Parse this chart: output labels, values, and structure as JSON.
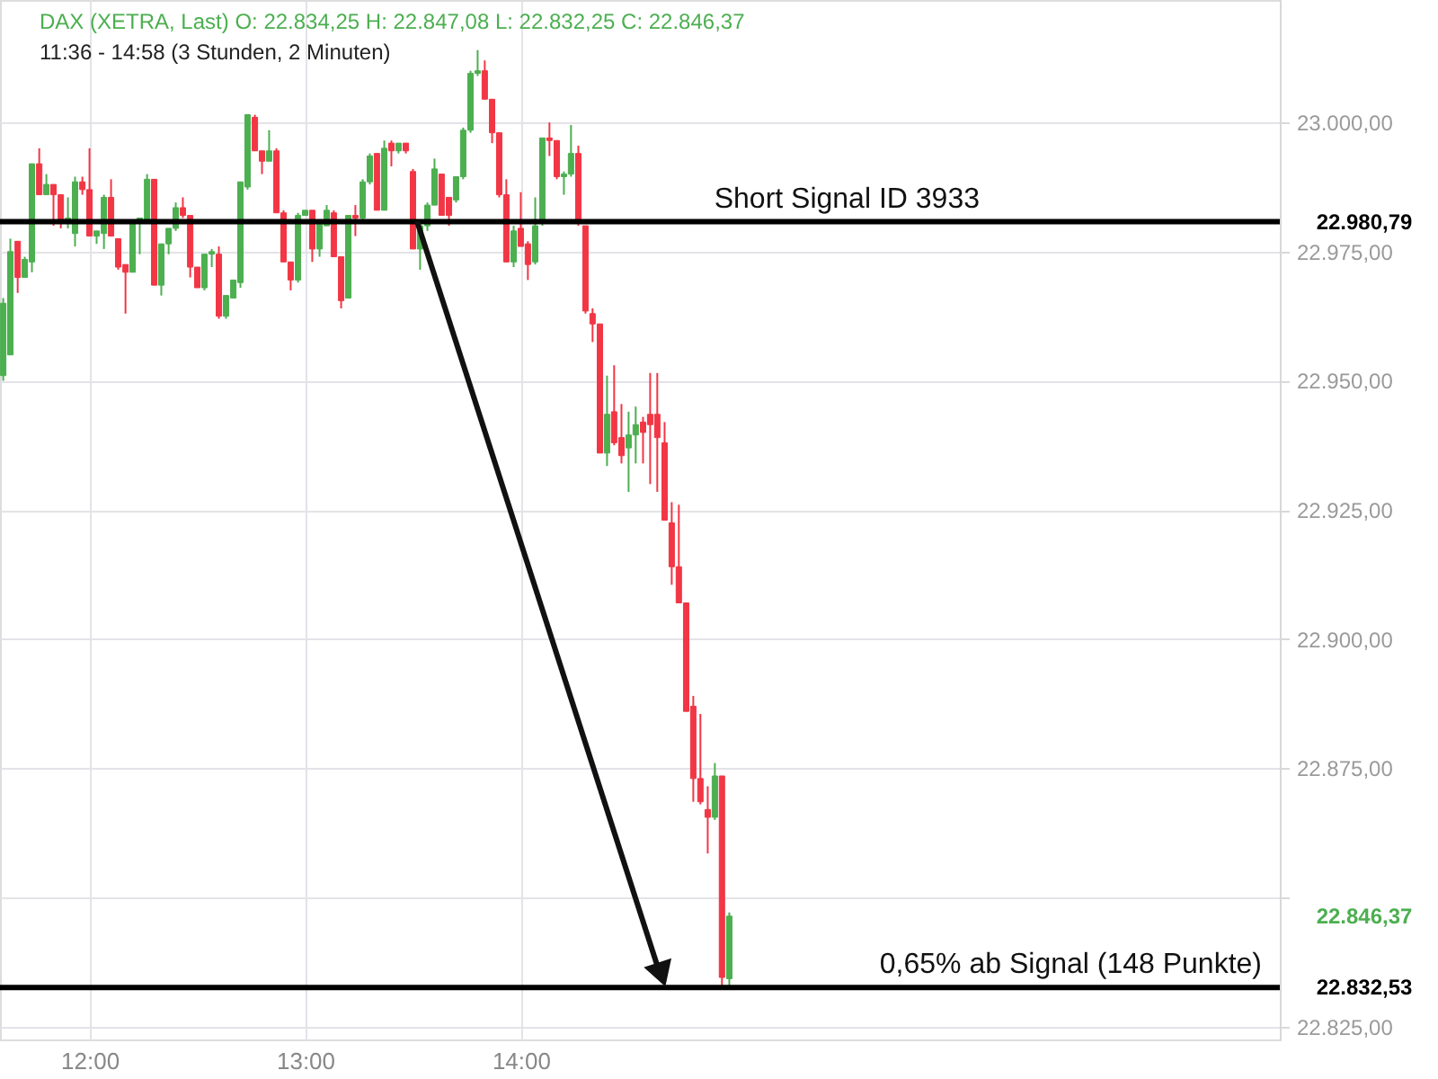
{
  "chart_data": {
    "type": "candlestick",
    "title": "DAX (XETRA, Last)  O: 22.834,25  H: 22.847,08  L: 22.832,25  C: 22.846,37",
    "subtitle": "11:36 - 14:58   (3 Stunden, 2 Minuten)",
    "x": [
      11.6,
      11.633,
      11.667,
      11.7,
      11.733,
      11.767,
      11.8,
      11.833,
      11.867,
      11.9,
      11.933,
      11.967,
      12.0,
      12.033,
      12.067,
      12.1,
      12.133,
      12.167,
      12.2,
      12.233,
      12.267,
      12.3,
      12.333,
      12.367,
      12.4,
      12.433,
      12.467,
      12.5,
      12.533,
      12.567,
      12.6,
      12.633,
      12.667,
      12.7,
      12.733,
      12.767,
      12.8,
      12.833,
      12.867,
      12.9,
      12.933,
      12.967,
      13.0,
      13.033,
      13.067,
      13.1,
      13.133,
      13.167,
      13.2,
      13.233,
      13.267,
      13.3,
      13.333,
      13.367,
      13.4,
      13.433,
      13.467,
      13.5,
      13.533,
      13.567,
      13.6,
      13.633,
      13.667,
      13.7,
      13.733,
      13.767,
      13.8,
      13.833,
      13.867,
      13.9,
      13.933,
      13.967,
      14.0,
      14.033,
      14.067,
      14.1,
      14.133,
      14.167,
      14.2,
      14.233,
      14.267,
      14.3,
      14.333,
      14.367,
      14.4,
      14.433,
      14.467,
      14.5,
      14.533,
      14.567,
      14.6,
      14.633,
      14.667,
      14.7,
      14.733,
      14.767,
      14.8,
      14.833,
      14.867,
      14.9,
      14.933,
      14.967
    ],
    "ohlc": [
      [
        22951,
        22966,
        22950,
        22965
      ],
      [
        22955,
        22977.5,
        22955,
        22975
      ],
      [
        22977,
        22977,
        22967,
        22970
      ],
      [
        22970,
        22974,
        22970,
        22973.5
      ],
      [
        22973,
        22992,
        22971,
        22992
      ],
      [
        22992,
        22995,
        22986,
        22986
      ],
      [
        22986,
        22990,
        22986,
        22988
      ],
      [
        22988,
        22988,
        22980,
        22986
      ],
      [
        22986,
        22986,
        22979.5,
        22981
      ],
      [
        22981,
        22985.5,
        22979.5,
        22981.5
      ],
      [
        22978.5,
        22989.5,
        22976,
        22988.5
      ],
      [
        22988.5,
        22989.5,
        22986,
        22987
      ],
      [
        22987,
        22995,
        22978,
        22978
      ],
      [
        22978,
        22979,
        22976.5,
        22979
      ],
      [
        22978.5,
        22986,
        22975.5,
        22985.5
      ],
      [
        22985.5,
        22989,
        22978,
        22978
      ],
      [
        22977.5,
        22977.5,
        22971.5,
        22972
      ],
      [
        22972.5,
        22972.5,
        22963,
        22971
      ],
      [
        22971,
        22981,
        22971,
        22980.5
      ],
      [
        22980.5,
        22981.5,
        22974.5,
        22981.5
      ],
      [
        22981,
        22990,
        22981,
        22989
      ],
      [
        22989,
        22989,
        22968.5,
        22968.5
      ],
      [
        22968.5,
        22976.5,
        22966.5,
        22976.5
      ],
      [
        22976.5,
        22979.5,
        22974.5,
        22979.5
      ],
      [
        22979.5,
        22984.5,
        22979,
        22983.5
      ],
      [
        22983.5,
        22985.5,
        22981.5,
        22982
      ],
      [
        22982,
        22982,
        22970,
        22972
      ],
      [
        22972,
        22972,
        22968,
        22968
      ],
      [
        22968,
        22974.5,
        22967.5,
        22974.5
      ],
      [
        22974.5,
        22975.5,
        22972,
        22975
      ],
      [
        22974.5,
        22976,
        22962,
        22962.5
      ],
      [
        22962.5,
        22966.5,
        22962,
        22966.5
      ],
      [
        22966,
        22969.5,
        22966,
        22969.5
      ],
      [
        22969,
        22988.5,
        22968,
        22988.5
      ],
      [
        22987.5,
        23001.5,
        22987,
        23001.5
      ],
      [
        23001,
        23001.5,
        22994.5,
        22994.5
      ],
      [
        22994.5,
        22994.5,
        22990,
        22992.5
      ],
      [
        22992.5,
        22998.5,
        22992.5,
        22994.5
      ],
      [
        22994.5,
        22995,
        22982.5,
        22982.5
      ],
      [
        22982.5,
        22983,
        22973,
        22973
      ],
      [
        22973,
        22973,
        22967.5,
        22969.5
      ],
      [
        22969.5,
        22982.5,
        22969,
        22982
      ],
      [
        22982,
        22983,
        22982,
        22983
      ],
      [
        22983,
        22983,
        22973,
        22975.5
      ],
      [
        22975.5,
        22981,
        22974,
        22980.5
      ],
      [
        22980,
        22984,
        22980,
        22983
      ],
      [
        22982.5,
        22983,
        22974,
        22974
      ],
      [
        22974,
        22974,
        22964,
        22965.5
      ],
      [
        22966,
        22982,
        22966,
        22982
      ],
      [
        22982,
        22984,
        22978,
        22981.5
      ],
      [
        22981.5,
        22989,
        22981,
        22988.5
      ],
      [
        22988.5,
        22994,
        22988,
        22993.5
      ],
      [
        22994,
        22994,
        22983,
        22983
      ],
      [
        22983,
        22996.5,
        22983,
        22995
      ],
      [
        22996,
        22996.5,
        22991.5,
        22994.5
      ],
      [
        22994.5,
        22996,
        22994,
        22996
      ],
      [
        22996,
        22996,
        22994,
        22994.5
      ],
      [
        22990.5,
        22991,
        22975.5,
        22975.5
      ],
      [
        22975.5,
        22980,
        22971.5,
        22980
      ],
      [
        22980,
        22984.5,
        22979,
        22984
      ],
      [
        22984,
        22993,
        22984,
        22991
      ],
      [
        22990,
        22990,
        22982,
        22982
      ],
      [
        22985.5,
        22985.5,
        22980,
        22982
      ],
      [
        22985,
        22989.5,
        22984.5,
        22989.5
      ],
      [
        22989.5,
        22999,
        22989,
        22998.5
      ],
      [
        22998.5,
        23010,
        22998,
        23009.5
      ],
      [
        23009.5,
        23014,
        23009,
        23010
      ],
      [
        23010,
        23012,
        23004.5,
        23004.5
      ],
      [
        23004.5,
        23004.5,
        22996,
        22998
      ],
      [
        22998,
        22998,
        22985.5,
        22986
      ],
      [
        22986,
        22989,
        22973,
        22973
      ],
      [
        22973,
        22980,
        22972,
        22979
      ],
      [
        22979.5,
        22986.5,
        22976,
        22976
      ],
      [
        22976.5,
        22977,
        22969.5,
        22972.5
      ],
      [
        22973,
        22985.5,
        22972.5,
        22980
      ],
      [
        22981,
        22997,
        22980,
        22997
      ],
      [
        22997,
        23000,
        22993.5,
        22996.5
      ],
      [
        22996.5,
        22996.5,
        22989,
        22989.5
      ],
      [
        22989.5,
        22990.5,
        22986,
        22990
      ],
      [
        22990,
        22999.5,
        22989.5,
        22994
      ],
      [
        22994,
        22995.5,
        22980,
        22980.5
      ],
      [
        22980,
        22980,
        22963,
        22963.5
      ],
      [
        22963,
        22964,
        22957.5,
        22961
      ],
      [
        22961,
        22961,
        22936,
        22936
      ],
      [
        22936,
        22951,
        22933.5,
        22943.5
      ],
      [
        22944,
        22953,
        22937.5,
        22938
      ],
      [
        22939,
        22945.5,
        22934,
        22935.5
      ],
      [
        22937,
        22944,
        22928.5,
        22939.5
      ],
      [
        22939.5,
        22945,
        22934,
        22941.5
      ],
      [
        22942,
        22943,
        22934,
        22940
      ],
      [
        22943.5,
        22951.5,
        22930,
        22941.5
      ],
      [
        22943.5,
        22951.5,
        22928.5,
        22939
      ],
      [
        22938,
        22942,
        22923,
        22923
      ],
      [
        22922.5,
        22926.5,
        22910.5,
        22914
      ],
      [
        22914,
        22926,
        22907,
        22907
      ],
      [
        22907,
        22907,
        22886,
        22886
      ],
      [
        22887,
        22889,
        22868.5,
        22873
      ],
      [
        22873,
        22885.5,
        22868,
        22868.5
      ],
      [
        22867,
        22871.5,
        22858.5,
        22865.5
      ],
      [
        22865.5,
        22876,
        22865,
        22873.5
      ],
      [
        22873.5,
        22873.5,
        22832.5,
        22834.5
      ],
      [
        22834.25,
        22847.08,
        22832.25,
        22846.37
      ]
    ],
    "colors": [
      "#4caf50",
      "#4caf50",
      "#f23645",
      "#4caf50",
      "#4caf50",
      "#f23645",
      "#4caf50",
      "#f23645",
      "#f23645",
      "#4caf50",
      "#4caf50",
      "#f23645",
      "#f23645",
      "#4caf50",
      "#4caf50",
      "#f23645",
      "#f23645",
      "#f23645",
      "#4caf50",
      "#4caf50",
      "#4caf50",
      "#f23645",
      "#4caf50",
      "#4caf50",
      "#4caf50",
      "#f23645",
      "#f23645",
      "#f23645",
      "#4caf50",
      "#4caf50",
      "#f23645",
      "#4caf50",
      "#4caf50",
      "#4caf50",
      "#4caf50",
      "#f23645",
      "#f23645",
      "#4caf50",
      "#f23645",
      "#f23645",
      "#f23645",
      "#4caf50",
      "#4caf50",
      "#f23645",
      "#4caf50",
      "#4caf50",
      "#f23645",
      "#f23645",
      "#4caf50",
      "#f23645",
      "#4caf50",
      "#4caf50",
      "#f23645",
      "#4caf50",
      "#f23645",
      "#4caf50",
      "#f23645",
      "#f23645",
      "#4caf50",
      "#4caf50",
      "#4caf50",
      "#f23645",
      "#f23645",
      "#4caf50",
      "#4caf50",
      "#4caf50",
      "#4caf50",
      "#f23645",
      "#f23645",
      "#f23645",
      "#f23645",
      "#4caf50",
      "#f23645",
      "#f23645",
      "#4caf50",
      "#4caf50",
      "#f23645",
      "#f23645",
      "#4caf50",
      "#4caf50",
      "#f23645",
      "#f23645",
      "#f23645",
      "#f23645",
      "#4caf50",
      "#f23645",
      "#f23645",
      "#4caf50",
      "#4caf50",
      "#f23645",
      "#f23645",
      "#f23645",
      "#f23645",
      "#f23645",
      "#f23645",
      "#f23645",
      "#f23645",
      "#f23645",
      "#f23645",
      "#4caf50",
      "#f23645",
      "#4caf50"
    ],
    "xlim": [
      11.585,
      17.52
    ],
    "xticks": [
      {
        "value": 12,
        "label": "12:00"
      },
      {
        "value": 13,
        "label": "13:00"
      },
      {
        "value": 14,
        "label": "14:00"
      }
    ],
    "ylim": [
      22822.5,
      23023.7
    ],
    "yticks": [
      {
        "value": 22825,
        "label": "22.825,00"
      },
      {
        "value": 22850,
        "label": null
      },
      {
        "value": 22875,
        "label": "22.875,00"
      },
      {
        "value": 22900,
        "label": "22.900,00"
      },
      {
        "value": 22925,
        "label": "22.925,00"
      },
      {
        "value": 22950,
        "label": "22.950,00"
      },
      {
        "value": 22975,
        "label": "22.975,00"
      },
      {
        "value": 23000,
        "label": "23.000,00"
      }
    ],
    "grid": true,
    "ref_lines": [
      {
        "axis": "y",
        "value": 22980.79,
        "label": "Short Signal  ID 3933",
        "color": "#000000"
      },
      {
        "axis": "y",
        "value": 22832.53,
        "label": "0,65% ab Signal (148 Punkte)",
        "color": "#000000"
      }
    ],
    "annotations": [
      "22.980,79",
      "22.832,53",
      "22.846,37"
    ]
  }
}
